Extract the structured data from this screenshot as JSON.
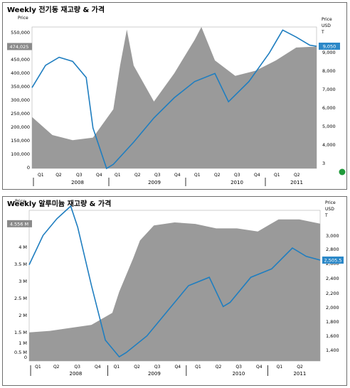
{
  "charts": [
    {
      "title": "Weekly 전기동 재고량 & 가격",
      "left_axis": {
        "label": "Price",
        "ticks": [
          "550,000",
          "500,000",
          "450,000",
          "400,000",
          "350,000",
          "300,000",
          "250,000",
          "200,000",
          "150,000",
          "100,000",
          "0"
        ],
        "marker": "474,025"
      },
      "right_axis": {
        "label_lines": [
          "Price",
          "USD",
          "T"
        ],
        "ticks": [
          "9,000",
          "8,000",
          "7,000",
          "6,000",
          "5,000",
          "4,000",
          "3"
        ],
        "marker": "9,050"
      },
      "quarters": [
        "Q1",
        "Q2",
        "Q3",
        "Q4",
        "Q1",
        "Q2",
        "Q3",
        "Q4",
        "Q1",
        "Q2",
        "Q3",
        "Q4",
        "Q1",
        "Q2"
      ],
      "years": [
        "2008",
        "2009",
        "2010",
        "2011"
      ]
    },
    {
      "title": "Weekly 알루미늄 재고량 & 가격",
      "left_axis": {
        "label": "Price",
        "ticks": [
          "4 M",
          "3.5 M",
          "3 M",
          "2.5 M",
          "2 M",
          "1.5 M",
          "1 M",
          "0.5 M",
          "0"
        ],
        "marker": "4.556 M"
      },
      "right_axis": {
        "label_lines": [
          "Price",
          "USD",
          "T"
        ],
        "ticks": [
          "3,000",
          "2,800",
          "2,600",
          "2,400",
          "2,200",
          "2,000",
          "1,800",
          "1,600",
          "1,400"
        ],
        "marker": "2,505.5"
      },
      "quarters": [
        "Q1",
        "Q2",
        "Q3",
        "Q4",
        "Q1",
        "Q2",
        "Q3",
        "Q4",
        "Q1",
        "Q2",
        "Q3",
        "Q4",
        "Q1",
        "Q2"
      ],
      "years": [
        "2008",
        "2009",
        "2010",
        "2011"
      ]
    }
  ],
  "colors": {
    "inventory_fill": "#9a9a9a",
    "price_line": "#1f7ec0",
    "marker_bg": "#8a8a8a",
    "price_marker_bg": "#2b88c8",
    "background": "#ffffff"
  },
  "chart_data": [
    {
      "type": "area",
      "title": "Weekly 전기동 재고량 & 가격",
      "series": [
        {
          "name": "재고량",
          "axis": "left",
          "x": [
            "2008-01",
            "2008-04",
            "2008-07",
            "2008-10",
            "2009-01",
            "2009-02",
            "2009-03",
            "2009-04",
            "2009-07",
            "2009-10",
            "2010-01",
            "2010-02",
            "2010-04",
            "2010-07",
            "2010-10",
            "2011-01",
            "2011-04",
            "2011-07"
          ],
          "values": [
            200000,
            130000,
            110000,
            120000,
            230000,
            400000,
            540000,
            400000,
            260000,
            370000,
            500000,
            550000,
            420000,
            360000,
            380000,
            420000,
            470000,
            474025
          ]
        },
        {
          "name": "Price",
          "axis": "right",
          "x": [
            "2008-01",
            "2008-03",
            "2008-05",
            "2008-07",
            "2008-09",
            "2008-10",
            "2008-12",
            "2009-01",
            "2009-04",
            "2009-07",
            "2009-10",
            "2010-01",
            "2010-04",
            "2010-06",
            "2010-09",
            "2010-12",
            "2011-02",
            "2011-04",
            "2011-06",
            "2011-07"
          ],
          "values": [
            7000,
            8100,
            8500,
            8300,
            7500,
            5000,
            3000,
            3200,
            4300,
            5500,
            6500,
            7300,
            7700,
            6300,
            7300,
            8700,
            9850,
            9500,
            9100,
            9050
          ]
        }
      ],
      "ylim_left": [
        0,
        550000
      ],
      "ylim_right": [
        3000,
        10000
      ],
      "xlim": [
        "2008-01",
        "2011-07"
      ]
    },
    {
      "type": "area",
      "title": "Weekly 알루미늄 재고량 & 가격",
      "series": [
        {
          "name": "재고량",
          "axis": "left",
          "x": [
            "2008-01",
            "2008-04",
            "2008-07",
            "2008-10",
            "2009-01",
            "2009-02",
            "2009-04",
            "2009-05",
            "2009-07",
            "2009-10",
            "2010-01",
            "2010-04",
            "2010-07",
            "2010-10",
            "2011-01",
            "2011-04",
            "2011-07"
          ],
          "values": [
            950000,
            1000000,
            1100000,
            1200000,
            1600000,
            2300000,
            3400000,
            4000000,
            4500000,
            4600000,
            4550000,
            4400000,
            4400000,
            4300000,
            4700000,
            4700000,
            4556000
          ]
        },
        {
          "name": "Price",
          "axis": "right",
          "x": [
            "2008-01",
            "2008-03",
            "2008-05",
            "2008-07",
            "2008-08",
            "2008-10",
            "2008-12",
            "2009-02",
            "2009-03",
            "2009-06",
            "2009-09",
            "2009-12",
            "2010-03",
            "2010-05",
            "2010-06",
            "2010-09",
            "2010-12",
            "2011-03",
            "2011-05",
            "2011-07"
          ],
          "values": [
            2450,
            2800,
            3000,
            3150,
            2900,
            2200,
            1550,
            1350,
            1400,
            1600,
            1900,
            2200,
            2300,
            1950,
            2000,
            2300,
            2400,
            2650,
            2550,
            2505.5
          ]
        }
      ],
      "ylim_left": [
        0,
        5000000
      ],
      "ylim_right": [
        1300,
        3100
      ],
      "xlim": [
        "2008-01",
        "2011-07"
      ]
    }
  ]
}
